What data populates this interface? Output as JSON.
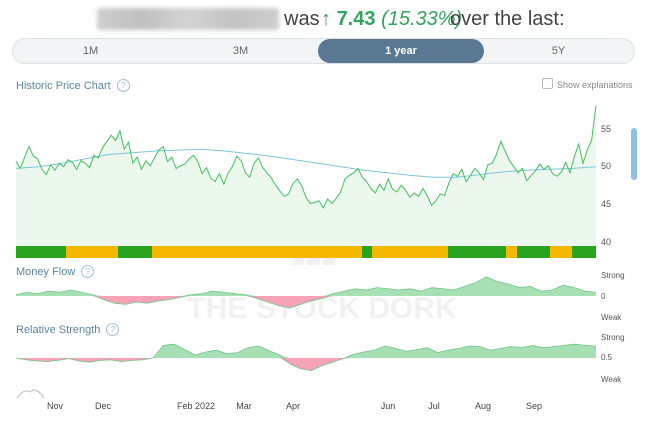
{
  "headline": {
    "was": "was",
    "arrow": "↑",
    "change_value": "7.43",
    "change_pct": "(15.33%)",
    "tail": "over the last:"
  },
  "periods": [
    {
      "label": "1M",
      "active": false
    },
    {
      "label": "3M",
      "active": false
    },
    {
      "label": "1 year",
      "active": true
    },
    {
      "label": "5Y",
      "active": false
    }
  ],
  "price_chart": {
    "title": "Historic Price Chart",
    "help": "?",
    "show_explanations": "Show explanations",
    "y_ticks": [
      "55",
      "50",
      "45",
      "40"
    ],
    "line_color": "#3ec45a",
    "ma_color": "#7fc4e0",
    "rating_colors": {
      "green": "#2aa31f",
      "yellow": "#f5b800"
    }
  },
  "money_flow": {
    "title": "Money Flow",
    "help": "?",
    "labels": [
      "Strong",
      "0",
      "Weak"
    ]
  },
  "relative_strength": {
    "title": "Relative Strength",
    "help": "?",
    "labels": [
      "Strong",
      "0.5",
      "Weak"
    ]
  },
  "x_axis": [
    "Nov",
    "Dec",
    "Feb 2022",
    "Mar",
    "Apr",
    "Jun",
    "Jul",
    "Aug",
    "Sep"
  ],
  "watermark": "THE STOCK DORK",
  "chart_data": [
    {
      "type": "line",
      "title": "Historic Price Chart",
      "ylim": [
        38.5,
        56
      ],
      "series": [
        {
          "values": [
            48.4,
            47.6,
            48.9,
            50.1,
            49.0,
            48.7,
            47.5,
            46.9,
            48.0,
            47.4,
            48.2,
            47.8,
            48.6,
            48.3,
            47.5,
            48.5,
            48.2,
            47.7,
            49.1,
            48.8,
            50.0,
            50.7,
            51.4,
            50.8,
            51.9,
            49.8,
            50.6,
            48.2,
            48.9,
            47.5,
            48.5,
            47.9,
            48.8,
            49.7,
            50.1,
            48.4,
            48.9,
            47.6,
            47.9,
            48.1,
            48.7,
            49.1,
            48.4,
            47.0,
            47.7,
            46.5,
            46.1,
            47.0,
            45.8,
            47.1,
            47.8,
            49.0,
            48.5,
            47.1,
            46.6,
            48.2,
            48.8,
            47.7,
            47.1,
            46.5,
            45.7,
            45.0,
            44.4,
            44.7,
            45.9,
            46.4,
            45.6,
            44.3,
            43.6,
            43.7,
            43.9,
            43.1,
            44.1,
            43.6,
            44.2,
            44.9,
            46.4,
            46.8,
            47.1,
            47.6,
            46.6,
            46.1,
            45.3,
            44.8,
            45.8,
            45.1,
            46.4,
            45.2,
            44.9,
            45.7,
            45.1,
            44.3,
            44.8,
            44.4,
            45.3,
            44.5,
            43.4,
            43.9,
            44.7,
            44.5,
            45.9,
            47.0,
            46.7,
            47.5,
            46.1,
            46.8,
            47.6,
            47.1,
            46.3,
            48.0,
            48.2,
            49.2,
            50.7,
            49.6,
            48.5,
            47.8,
            47.1,
            47.6,
            46.2,
            46.8,
            47.3,
            48.1,
            47.5,
            47.9,
            47.0,
            46.7,
            47.2,
            48.3,
            47.1,
            49.0,
            50.4,
            48.2,
            49.7,
            50.9,
            54.8
          ]
        },
        {
          "values": [
            47.6,
            47.8,
            48.2,
            48.7,
            49.2,
            49.4,
            49.6,
            49.7,
            49.8,
            49.6,
            49.3,
            49.0,
            48.6,
            48.2,
            47.8,
            47.4,
            47.1,
            46.8,
            46.6,
            46.6,
            46.9,
            47.2,
            47.4,
            47.5,
            47.6,
            47.8
          ]
        }
      ]
    },
    {
      "type": "area",
      "title": "Money Flow",
      "ylim": [
        -1,
        1
      ],
      "series": [
        {
          "values": [
            0.05,
            0.15,
            0.1,
            0.2,
            0.15,
            0.25,
            0.15,
            0.05,
            -0.15,
            -0.3,
            -0.35,
            -0.25,
            -0.3,
            -0.2,
            -0.15,
            -0.05,
            0.05,
            0.1,
            0.2,
            0.15,
            0.1,
            0.05,
            -0.1,
            -0.25,
            -0.4,
            -0.5,
            -0.35,
            -0.2,
            -0.1,
            0.1,
            0.2,
            0.3,
            0.25,
            0.35,
            0.3,
            0.25,
            0.3,
            0.2,
            0.35,
            0.3,
            0.25,
            0.4,
            0.55,
            0.8,
            0.6,
            0.5,
            0.35,
            0.4,
            0.2,
            0.25,
            0.45,
            0.35,
            0.2,
            0.15
          ]
        }
      ]
    },
    {
      "type": "area",
      "title": "Relative Strength",
      "ylim": [
        0,
        1
      ],
      "series": [
        {
          "values": [
            0.5,
            0.47,
            0.45,
            0.44,
            0.46,
            0.49,
            0.45,
            0.43,
            0.46,
            0.47,
            0.44,
            0.46,
            0.47,
            0.5,
            0.71,
            0.73,
            0.64,
            0.55,
            0.6,
            0.63,
            0.57,
            0.59,
            0.67,
            0.7,
            0.62,
            0.55,
            0.4,
            0.32,
            0.29,
            0.37,
            0.43,
            0.49,
            0.56,
            0.6,
            0.63,
            0.7,
            0.66,
            0.61,
            0.64,
            0.67,
            0.59,
            0.63,
            0.66,
            0.7,
            0.69,
            0.63,
            0.66,
            0.69,
            0.67,
            0.71,
            0.67,
            0.69,
            0.71,
            0.73,
            0.71,
            0.7
          ]
        }
      ]
    }
  ]
}
